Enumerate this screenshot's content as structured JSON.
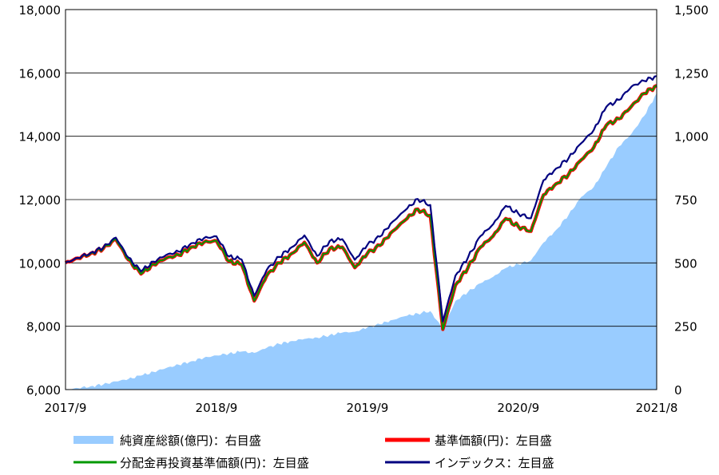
{
  "chart_data": {
    "type": "line",
    "title": "",
    "x_range": [
      "2017-09",
      "2021-08"
    ],
    "x_ticks": [
      "2017/9",
      "2018/9",
      "2019/9",
      "2020/9",
      "2021/8"
    ],
    "y_left": {
      "range": [
        6000,
        18000
      ],
      "ticks": [
        "6,000",
        "8,000",
        "10,000",
        "12,000",
        "14,000",
        "16,000",
        "18,000"
      ]
    },
    "y_right": {
      "range": [
        0,
        1500
      ],
      "ticks": [
        "0",
        "250",
        "500",
        "750",
        "1,000",
        "1,250",
        "1,500"
      ]
    },
    "grid": "horizontal",
    "legend_position": "bottom",
    "series": [
      {
        "name": "純資産総額(億円)：右目盛",
        "type": "area",
        "axis": "right",
        "color": "#99ccff",
        "points": [
          [
            "2017-09",
            0
          ],
          [
            "2017-10",
            6
          ],
          [
            "2017-11",
            13
          ],
          [
            "2017-12",
            20
          ],
          [
            "2018-01",
            32
          ],
          [
            "2018-02",
            42
          ],
          [
            "2018-03",
            55
          ],
          [
            "2018-04",
            70
          ],
          [
            "2018-05",
            85
          ],
          [
            "2018-06",
            98
          ],
          [
            "2018-07",
            112
          ],
          [
            "2018-08",
            125
          ],
          [
            "2018-09",
            135
          ],
          [
            "2018-10",
            142
          ],
          [
            "2018-11",
            150
          ],
          [
            "2018-12",
            145
          ],
          [
            "2019-01",
            165
          ],
          [
            "2019-02",
            180
          ],
          [
            "2019-03",
            192
          ],
          [
            "2019-04",
            200
          ],
          [
            "2019-05",
            205
          ],
          [
            "2019-06",
            215
          ],
          [
            "2019-07",
            225
          ],
          [
            "2019-08",
            228
          ],
          [
            "2019-09",
            245
          ],
          [
            "2019-10",
            258
          ],
          [
            "2019-11",
            275
          ],
          [
            "2019-12",
            290
          ],
          [
            "2020-01",
            300
          ],
          [
            "2020-02",
            310
          ],
          [
            "2020-03",
            240
          ],
          [
            "2020-04",
            350
          ],
          [
            "2020-05",
            385
          ],
          [
            "2020-06",
            420
          ],
          [
            "2020-07",
            445
          ],
          [
            "2020-08",
            480
          ],
          [
            "2020-09",
            495
          ],
          [
            "2020-10",
            510
          ],
          [
            "2020-11",
            580
          ],
          [
            "2020-12",
            630
          ],
          [
            "2021-01",
            690
          ],
          [
            "2021-02",
            760
          ],
          [
            "2021-03",
            800
          ],
          [
            "2021-04",
            880
          ],
          [
            "2021-05",
            960
          ],
          [
            "2021-06",
            1010
          ],
          [
            "2021-07",
            1080
          ],
          [
            "2021-08",
            1170
          ]
        ]
      },
      {
        "name": "基準価額(円)：左目盛",
        "type": "line",
        "axis": "left",
        "color": "#ff0000",
        "points": [
          [
            "2017-09",
            10000
          ],
          [
            "2017-10",
            10150
          ],
          [
            "2017-11",
            10300
          ],
          [
            "2017-12",
            10450
          ],
          [
            "2018-01",
            10750
          ],
          [
            "2018-02",
            10100
          ],
          [
            "2018-03",
            9650
          ],
          [
            "2018-04",
            9950
          ],
          [
            "2018-05",
            10150
          ],
          [
            "2018-06",
            10250
          ],
          [
            "2018-07",
            10500
          ],
          [
            "2018-08",
            10650
          ],
          [
            "2018-09",
            10700
          ],
          [
            "2018-10",
            10050
          ],
          [
            "2018-11",
            9950
          ],
          [
            "2018-12",
            8800
          ],
          [
            "2019-01",
            9600
          ],
          [
            "2019-02",
            10000
          ],
          [
            "2019-03",
            10300
          ],
          [
            "2019-04",
            10650
          ],
          [
            "2019-05",
            10000
          ],
          [
            "2019-06",
            10450
          ],
          [
            "2019-07",
            10500
          ],
          [
            "2019-08",
            9850
          ],
          [
            "2019-09",
            10300
          ],
          [
            "2019-10",
            10550
          ],
          [
            "2019-11",
            11000
          ],
          [
            "2019-12",
            11350
          ],
          [
            "2020-01",
            11700
          ],
          [
            "2020-02",
            11500
          ],
          [
            "2020-03",
            7900
          ],
          [
            "2020-04",
            9300
          ],
          [
            "2020-05",
            9850
          ],
          [
            "2020-06",
            10500
          ],
          [
            "2020-07",
            10850
          ],
          [
            "2020-08",
            11400
          ],
          [
            "2020-09",
            11150
          ],
          [
            "2020-10",
            11000
          ],
          [
            "2020-11",
            12150
          ],
          [
            "2020-12",
            12500
          ],
          [
            "2021-01",
            12800
          ],
          [
            "2021-02",
            13250
          ],
          [
            "2021-03",
            13650
          ],
          [
            "2021-04",
            14350
          ],
          [
            "2021-05",
            14550
          ],
          [
            "2021-06",
            14950
          ],
          [
            "2021-07",
            15350
          ],
          [
            "2021-08",
            15600
          ]
        ]
      },
      {
        "name": "分配金再投資基準価額(円)：左目盛",
        "type": "line",
        "axis": "left",
        "color": "#009900",
        "points": [
          [
            "2017-09",
            10000
          ],
          [
            "2017-10",
            10150
          ],
          [
            "2017-11",
            10300
          ],
          [
            "2017-12",
            10450
          ],
          [
            "2018-01",
            10750
          ],
          [
            "2018-02",
            10100
          ],
          [
            "2018-03",
            9650
          ],
          [
            "2018-04",
            9950
          ],
          [
            "2018-05",
            10150
          ],
          [
            "2018-06",
            10250
          ],
          [
            "2018-07",
            10500
          ],
          [
            "2018-08",
            10650
          ],
          [
            "2018-09",
            10700
          ],
          [
            "2018-10",
            10050
          ],
          [
            "2018-11",
            9950
          ],
          [
            "2018-12",
            8800
          ],
          [
            "2019-01",
            9600
          ],
          [
            "2019-02",
            10000
          ],
          [
            "2019-03",
            10300
          ],
          [
            "2019-04",
            10650
          ],
          [
            "2019-05",
            10000
          ],
          [
            "2019-06",
            10450
          ],
          [
            "2019-07",
            10500
          ],
          [
            "2019-08",
            9850
          ],
          [
            "2019-09",
            10300
          ],
          [
            "2019-10",
            10550
          ],
          [
            "2019-11",
            11000
          ],
          [
            "2019-12",
            11350
          ],
          [
            "2020-01",
            11700
          ],
          [
            "2020-02",
            11500
          ],
          [
            "2020-03",
            7900
          ],
          [
            "2020-04",
            9300
          ],
          [
            "2020-05",
            9850
          ],
          [
            "2020-06",
            10500
          ],
          [
            "2020-07",
            10850
          ],
          [
            "2020-08",
            11400
          ],
          [
            "2020-09",
            11150
          ],
          [
            "2020-10",
            11000
          ],
          [
            "2020-11",
            12150
          ],
          [
            "2020-12",
            12500
          ],
          [
            "2021-01",
            12800
          ],
          [
            "2021-02",
            13250
          ],
          [
            "2021-03",
            13650
          ],
          [
            "2021-04",
            14350
          ],
          [
            "2021-05",
            14550
          ],
          [
            "2021-06",
            14950
          ],
          [
            "2021-07",
            15350
          ],
          [
            "2021-08",
            15600
          ]
        ]
      },
      {
        "name": "インデックス：左目盛",
        "type": "line",
        "axis": "left",
        "color": "#000080",
        "points": [
          [
            "2017-09",
            10000
          ],
          [
            "2017-10",
            10160
          ],
          [
            "2017-11",
            10320
          ],
          [
            "2017-12",
            10480
          ],
          [
            "2018-01",
            10800
          ],
          [
            "2018-02",
            10170
          ],
          [
            "2018-03",
            9730
          ],
          [
            "2018-04",
            10040
          ],
          [
            "2018-05",
            10250
          ],
          [
            "2018-06",
            10360
          ],
          [
            "2018-07",
            10620
          ],
          [
            "2018-08",
            10780
          ],
          [
            "2018-09",
            10840
          ],
          [
            "2018-10",
            10200
          ],
          [
            "2018-11",
            10110
          ],
          [
            "2018-12",
            8960
          ],
          [
            "2019-01",
            9780
          ],
          [
            "2019-02",
            10190
          ],
          [
            "2019-03",
            10500
          ],
          [
            "2019-04",
            10870
          ],
          [
            "2019-05",
            10220
          ],
          [
            "2019-06",
            10690
          ],
          [
            "2019-07",
            10750
          ],
          [
            "2019-08",
            10100
          ],
          [
            "2019-09",
            10570
          ],
          [
            "2019-10",
            10830
          ],
          [
            "2019-11",
            11300
          ],
          [
            "2019-12",
            11660
          ],
          [
            "2020-01",
            12020
          ],
          [
            "2020-02",
            11830
          ],
          [
            "2020-03",
            8150
          ],
          [
            "2020-04",
            9600
          ],
          [
            "2020-05",
            10170
          ],
          [
            "2020-06",
            10850
          ],
          [
            "2020-07",
            11220
          ],
          [
            "2020-08",
            11800
          ],
          [
            "2020-09",
            11560
          ],
          [
            "2020-10",
            11410
          ],
          [
            "2020-11",
            12610
          ],
          [
            "2020-12",
            12980
          ],
          [
            "2021-01",
            13310
          ],
          [
            "2021-02",
            13780
          ],
          [
            "2021-03",
            14200
          ],
          [
            "2021-04",
            14930
          ],
          [
            "2021-05",
            15150
          ],
          [
            "2021-06",
            15570
          ],
          [
            "2021-07",
            15750
          ],
          [
            "2021-08",
            15900
          ]
        ]
      }
    ]
  }
}
